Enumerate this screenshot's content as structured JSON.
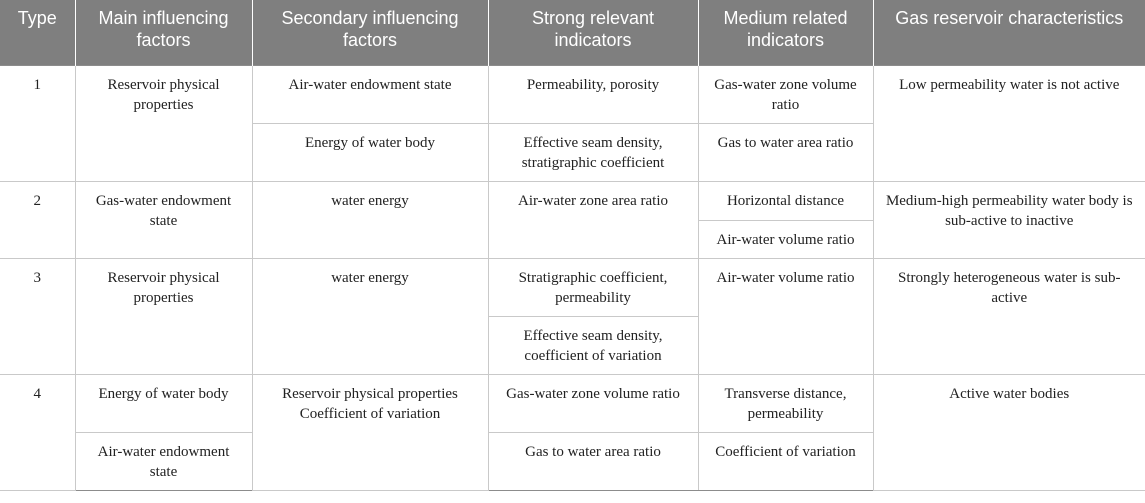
{
  "headers": [
    "Type",
    "Main influencing factors",
    "Secondary influencing factors",
    "Strong relevant indicators",
    "Medium related indicators",
    "Gas reservoir characteristics"
  ],
  "rows": [
    {
      "type": "1",
      "main": "Reservoir physical properties",
      "secondary": [
        "Air-water endowment state",
        "Energy of water body"
      ],
      "strong": [
        "Permeability, porosity",
        "Effective seam density, stratigraphic coefficient"
      ],
      "medium": [
        "Gas-water zone volume ratio",
        "Gas to water area ratio"
      ],
      "characteristics": "Low permeability water is not active"
    },
    {
      "type": "2",
      "main": "Gas-water endowment state",
      "secondary": "water energy",
      "strong": "Air-water zone area ratio",
      "medium": [
        "Horizontal distance",
        "Air-water volume ratio"
      ],
      "characteristics": "Medium-high permeability water body is sub-active to inactive"
    },
    {
      "type": "3",
      "main": "Reservoir physical properties",
      "secondary": "water energy",
      "strong": [
        "Stratigraphic coefficient, permeability",
        "Effective seam density, coefficient of variation"
      ],
      "medium": "Air-water volume ratio",
      "characteristics": "Strongly heterogeneous water is sub-active"
    },
    {
      "type": "4",
      "main": [
        "Energy of water body",
        "Air-water endowment state"
      ],
      "secondary": "Reservoir physical properties Coefficient of variation",
      "strong": [
        "Gas-water zone volume ratio",
        "Gas to water area ratio"
      ],
      "medium": [
        "Transverse distance, permeability",
        "Coefficient of variation"
      ],
      "characteristics": "Active water bodies"
    }
  ]
}
